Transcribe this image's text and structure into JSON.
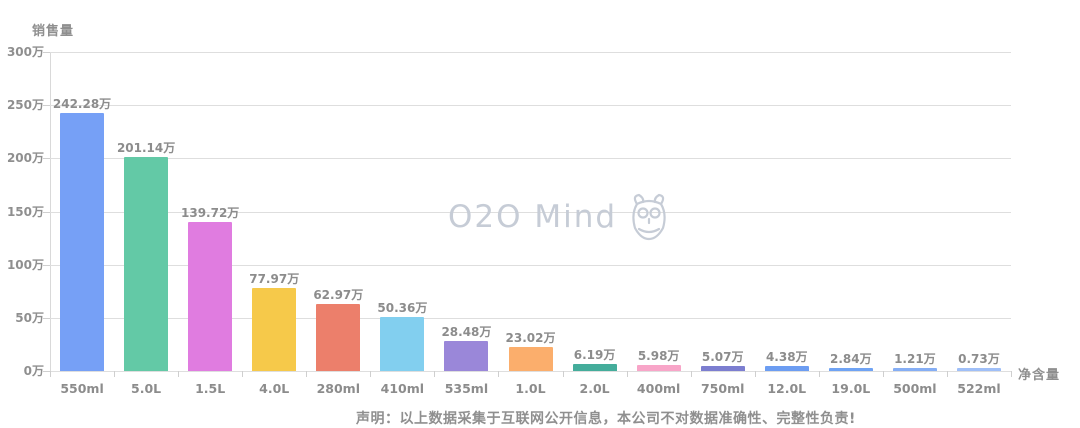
{
  "watermark": {
    "text": "O2O Mind",
    "icon": "owl-logo"
  },
  "disclaimer": {
    "text": "声明：以上数据采集于互联网公开信息，本公司不对数据准确性、完整性负责!"
  },
  "chart_data": {
    "type": "bar",
    "title": "",
    "ylabel": "销售量",
    "xlabel": "净含量",
    "ylim": [
      0,
      300
    ],
    "grid": true,
    "legend": false,
    "yticks": [
      0,
      50,
      100,
      150,
      200,
      250,
      300
    ],
    "ytick_labels": [
      "0万",
      "50万",
      "100万",
      "150万",
      "200万",
      "250万",
      "300万"
    ],
    "categories": [
      "550ml",
      "5.0L",
      "1.5L",
      "4.0L",
      "280ml",
      "410ml",
      "535ml",
      "1.0L",
      "2.0L",
      "400ml",
      "750ml",
      "12.0L",
      "19.0L",
      "500ml",
      "522ml"
    ],
    "values": [
      242.28,
      201.14,
      139.72,
      77.97,
      62.97,
      50.36,
      28.48,
      23.02,
      6.19,
      5.98,
      5.07,
      4.38,
      2.84,
      1.21,
      0.73
    ],
    "value_labels": [
      "242.28万",
      "201.14万",
      "139.72万",
      "77.97万",
      "62.97万",
      "50.36万",
      "28.48万",
      "23.02万",
      "6.19万",
      "5.98万",
      "5.07万",
      "4.38万",
      "2.84万",
      "1.21万",
      "0.73万"
    ],
    "bar_colors": [
      "#76A0F6",
      "#63C9A6",
      "#E07CE0",
      "#F6C94A",
      "#EC7F6B",
      "#82CFEF",
      "#9A87D9",
      "#FBAE6C",
      "#44AD9B",
      "#F8A5C8",
      "#7C7ED0",
      "#6C9DF2",
      "#6FA3F4",
      "#85AEF5",
      "#9FBFF8"
    ],
    "text_color": "#8c8c8c",
    "grid_color": "#dedede"
  }
}
